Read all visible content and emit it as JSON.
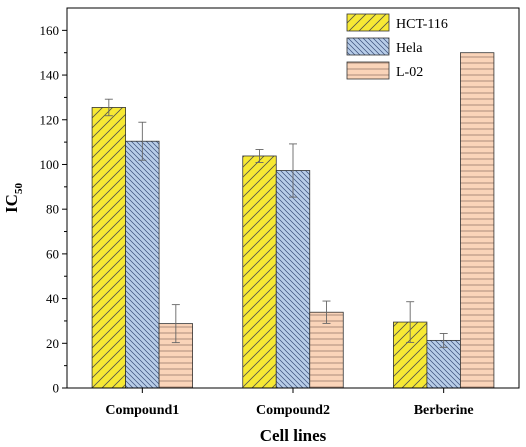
{
  "chart_data": {
    "type": "bar",
    "title": "",
    "xlabel": "Cell lines",
    "ylabel": {
      "main": "IC",
      "sub": "50"
    },
    "categories": [
      "Compound1",
      "Compound2",
      "Berberine"
    ],
    "ylim": [
      0,
      170
    ],
    "yticks": [
      0,
      20,
      40,
      60,
      80,
      100,
      120,
      140,
      160
    ],
    "grid": false,
    "legend_position": "top-right",
    "series": [
      {
        "name": "HCT-116",
        "values": [
          125.5,
          103.8,
          29.5
        ],
        "errors": [
          3.7,
          2.9,
          9.1
        ],
        "color": "#f7e934",
        "pattern": "diagonal-right"
      },
      {
        "name": "Hela",
        "values": [
          110.4,
          97.3,
          21.3
        ],
        "errors": [
          8.5,
          11.9,
          3.1
        ],
        "color": "#b8cde8",
        "pattern": "diagonal-left"
      },
      {
        "name": "L-02",
        "values": [
          28.8,
          33.9,
          150
        ],
        "errors": [
          8.5,
          5.0,
          0
        ],
        "color": "#fad4b9",
        "pattern": "horizontal"
      }
    ]
  }
}
